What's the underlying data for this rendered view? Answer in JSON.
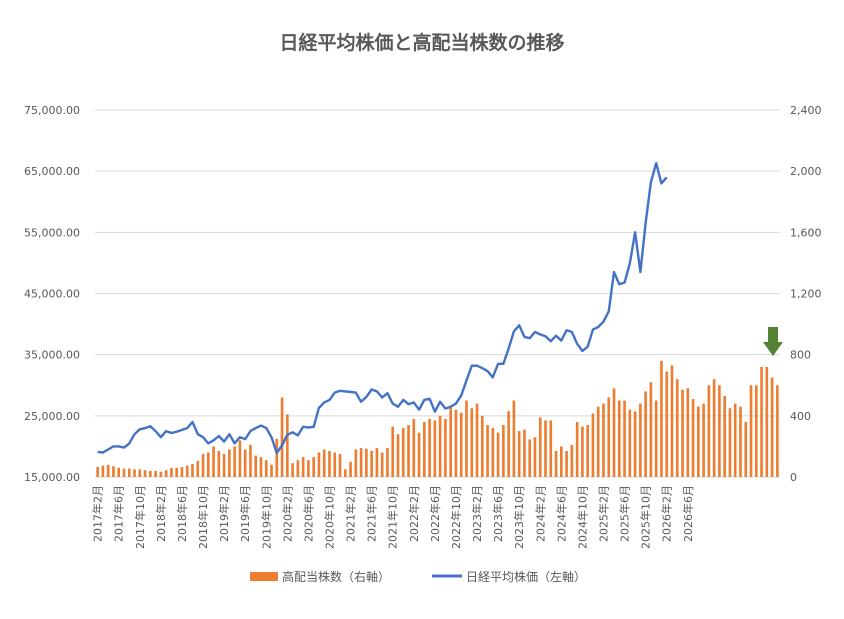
{
  "chart_data": {
    "type": "bar+line",
    "title": "日経平均株価と高配当株数の推移",
    "y_left": {
      "min": 15000,
      "max": 75000,
      "step": 10000,
      "tick_labels": [
        "15,000.00",
        "25,000.00",
        "35,000.00",
        "45,000.00",
        "55,000.00",
        "65,000.00",
        "75,000.00"
      ]
    },
    "y_right": {
      "min": 0,
      "max": 2400,
      "step": 400,
      "tick_labels": [
        "0",
        "400",
        "800",
        "1,200",
        "1,600",
        "2,000",
        "2,400"
      ]
    },
    "x_tick_labels": [
      "2017年2月",
      "2017年6月",
      "2017年10月",
      "2018年2月",
      "2018年6月",
      "2018年10月",
      "2019年2月",
      "2019年6月",
      "2019年10月",
      "2020年2月",
      "2020年6月",
      "2020年10月",
      "2021年2月",
      "2021年6月",
      "2021年10月",
      "2022年2月",
      "2022年6月",
      "2022年10月",
      "2023年2月",
      "2023年6月",
      "2023年10月",
      "2024年2月",
      "2024年6月",
      "2024年10月",
      "2025年2月",
      "2025年6月",
      "2025年10月",
      "2026年2月",
      "2026年6月"
    ],
    "legend": {
      "position": "bottom",
      "bar_label": "高配当株数（右軸）",
      "line_label": "日経平均株価（左軸）"
    },
    "grid": true,
    "colors": {
      "bars": "#ED7D31",
      "line": "#4472C4",
      "grid": "#D9D9D9",
      "axis_text": "#595959",
      "title": "#595959",
      "arrow": "#548235"
    },
    "series": [
      {
        "name": "高配当株数（右軸）",
        "axis": "right",
        "type": "bar",
        "values": [
          65,
          75,
          80,
          70,
          60,
          55,
          55,
          50,
          50,
          45,
          40,
          40,
          35,
          45,
          60,
          60,
          65,
          75,
          85,
          105,
          150,
          160,
          200,
          170,
          150,
          180,
          200,
          240,
          180,
          210,
          140,
          130,
          110,
          80,
          250,
          520,
          410,
          90,
          110,
          130,
          110,
          130,
          160,
          180,
          170,
          160,
          150,
          50,
          100,
          180,
          190,
          185,
          170,
          190,
          160,
          190,
          330,
          280,
          320,
          340,
          380,
          290,
          360,
          380,
          370,
          400,
          380,
          460,
          440,
          420,
          500,
          450,
          480,
          400,
          340,
          320,
          290,
          340,
          430,
          500,
          300,
          310,
          245,
          260,
          390,
          370,
          370,
          170,
          200,
          170,
          210,
          360,
          330,
          340,
          415,
          460,
          480,
          520,
          580,
          500,
          500,
          440,
          430,
          480,
          560,
          620,
          500,
          760,
          690,
          730,
          640,
          570,
          580,
          510,
          460,
          480,
          600,
          640,
          600,
          530,
          450,
          480,
          460,
          360,
          600,
          600,
          720,
          720,
          650,
          600
        ]
      },
      {
        "name": "日経平均株価（左軸）",
        "axis": "left",
        "type": "line",
        "values": [
          19100,
          19000,
          19500,
          20000,
          20000,
          19800,
          20500,
          22000,
          22800,
          23000,
          23300,
          22500,
          21500,
          22500,
          22200,
          22400,
          22700,
          23000,
          24000,
          22000,
          21500,
          20500,
          21000,
          21700,
          20800,
          22000,
          20500,
          21500,
          21200,
          22500,
          23000,
          23400,
          23000,
          21500,
          18900,
          20200,
          21900,
          22300,
          21800,
          23200,
          23100,
          23200,
          26300,
          27200,
          27600,
          28800,
          29100,
          29000,
          28900,
          28800,
          27300,
          28100,
          29300,
          29000,
          28000,
          28700,
          27000,
          26500,
          27600,
          26900,
          27200,
          26000,
          27600,
          27800,
          25700,
          27300,
          26200,
          26500,
          27000,
          28300,
          30800,
          33200,
          33200,
          32800,
          32300,
          31300,
          33500,
          33500,
          36000,
          38800,
          39800,
          37900,
          37700,
          38700,
          38300,
          38000,
          37200,
          38100,
          37300,
          39000,
          38700,
          36800,
          35600,
          36300,
          39100,
          39500,
          40400,
          42100,
          48500,
          46500,
          46800,
          49900,
          55000,
          48500,
          56500,
          63200,
          66300,
          63000,
          64000
        ]
      }
    ]
  }
}
